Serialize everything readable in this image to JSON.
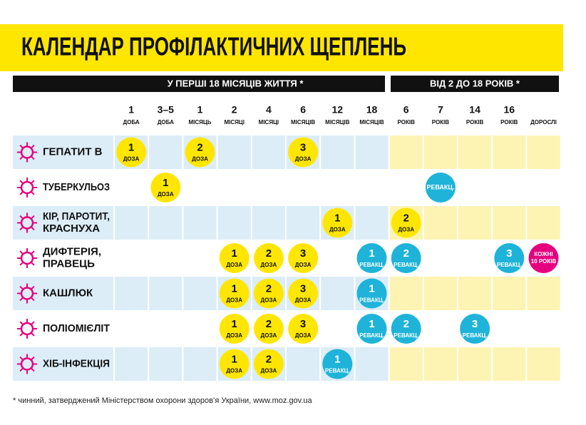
{
  "title": "КАЛЕНДАР ПРОФІЛАКТИЧНИХ ЩЕПЛЕНЬ",
  "groups": [
    "У ПЕРШІ 18 МІСЯЦІВ ЖИТТЯ *",
    "ВІД 2 ДО 18 РОКІВ *"
  ],
  "columns": [
    {
      "number": 1,
      "unit": "ДОБА"
    },
    {
      "number": "3–5",
      "unit": "ДОБА"
    },
    {
      "number": 1,
      "unit": "МІСЯЦЬ"
    },
    {
      "number": 2,
      "unit": "МІСЯЦІ"
    },
    {
      "number": 4,
      "unit": "МІСЯЦІ"
    },
    {
      "number": 6,
      "unit": "МІСЯЦІВ"
    },
    {
      "number": 12,
      "unit": "МІСЯЦІВ"
    },
    {
      "number": 18,
      "unit": "МІСЯЦІВ"
    },
    {
      "number": 6,
      "unit": "РОКІВ"
    },
    {
      "number": 7,
      "unit": "РОКІВ"
    },
    {
      "number": 14,
      "unit": "РОКІВ"
    },
    {
      "number": 16,
      "unit": "РОКІВ"
    },
    {
      "unit": "ДОРОСЛІ"
    }
  ],
  "rows": [
    {
      "name": [
        "ГЕПАТИТ В"
      ],
      "cells": [
        {
          "number": 1,
          "label": "ДОЗА",
          "color": "#ffe600"
        },
        null,
        {
          "number": 2,
          "label": "ДОЗА",
          "color": "#ffe600"
        },
        null,
        null,
        {
          "number": 3,
          "label": "ДОЗА",
          "color": "#ffe600"
        },
        null,
        null,
        null,
        null,
        null,
        null,
        null
      ]
    },
    {
      "name": [
        "ТУБЕРКУЛЬОЗ"
      ],
      "cells": [
        null,
        {
          "number": 1,
          "label": "ДОЗА",
          "color": "#ffe600"
        },
        null,
        null,
        null,
        null,
        null,
        null,
        null,
        {
          "label": "РЕВАКЦ.",
          "color": "#1fb3d9"
        },
        null,
        null,
        null
      ]
    },
    {
      "name": [
        "КІР, ПАРОТИТ,",
        "КРАСНУХА"
      ],
      "cells": [
        null,
        null,
        null,
        null,
        null,
        null,
        {
          "number": 1,
          "label": "ДОЗА",
          "color": "#ffe600"
        },
        null,
        {
          "number": 2,
          "label": "ДОЗА",
          "color": "#ffe600"
        },
        null,
        null,
        null,
        null
      ]
    },
    {
      "name": [
        "ДИФТЕРІЯ,",
        "ПРАВЕЦЬ"
      ],
      "cells": [
        null,
        null,
        null,
        {
          "number": 1,
          "label": "ДОЗА",
          "color": "#ffe600"
        },
        {
          "number": 2,
          "label": "ДОЗА",
          "color": "#ffe600"
        },
        {
          "number": 3,
          "label": "ДОЗА",
          "color": "#ffe600"
        },
        null,
        {
          "number": 1,
          "label": "РЕВАКЦ.",
          "color": "#1fb3d9"
        },
        {
          "number": 2,
          "label": "РЕВАКЦ.",
          "color": "#1fb3d9"
        },
        null,
        null,
        {
          "number": 3,
          "label": "РЕВАКЦ.",
          "color": "#1fb3d9"
        },
        {
          "lines": [
            "КОЖНІ",
            "10 РОКІВ"
          ],
          "color": "#e5007e"
        }
      ]
    },
    {
      "name": [
        "КАШЛЮК"
      ],
      "cells": [
        null,
        null,
        null,
        {
          "number": 1,
          "label": "ДОЗА",
          "color": "#ffe600"
        },
        {
          "number": 2,
          "label": "ДОЗА",
          "color": "#ffe600"
        },
        {
          "number": 3,
          "label": "ДОЗА",
          "color": "#ffe600"
        },
        null,
        {
          "number": 1,
          "label": "РЕВАКЦ.",
          "color": "#1fb3d9"
        },
        null,
        null,
        null,
        null,
        null
      ]
    },
    {
      "name": [
        "ПОЛІОМІЄЛІТ"
      ],
      "cells": [
        null,
        null,
        null,
        {
          "number": 1,
          "label": "ДОЗА",
          "color": "#ffe600"
        },
        {
          "number": 2,
          "label": "ДОЗА",
          "color": "#ffe600"
        },
        {
          "number": 3,
          "label": "ДОЗА",
          "color": "#ffe600"
        },
        null,
        {
          "number": 1,
          "label": "РЕВАКЦ.",
          "color": "#1fb3d9"
        },
        {
          "number": 2,
          "label": "РЕВАКЦ.",
          "color": "#1fb3d9"
        },
        null,
        {
          "number": 3,
          "label": "РЕВАКЦ.",
          "color": "#1fb3d9"
        },
        null,
        null
      ]
    },
    {
      "name": [
        "ХІБ-ІНФЕКЦІЯ"
      ],
      "cells": [
        null,
        null,
        null,
        {
          "number": 1,
          "label": "ДОЗА",
          "color": "#ffe600"
        },
        {
          "number": 2,
          "label": "ДОЗА",
          "color": "#ffe600"
        },
        null,
        {
          "number": 1,
          "label": "РЕВАКЦ.",
          "color": "#1fb3d9"
        },
        null,
        null,
        null,
        null,
        null,
        null
      ]
    }
  ],
  "footnote": "* чинний, затверджений Міністерством охорони здоров’я України, www.moz.gov.ua"
}
